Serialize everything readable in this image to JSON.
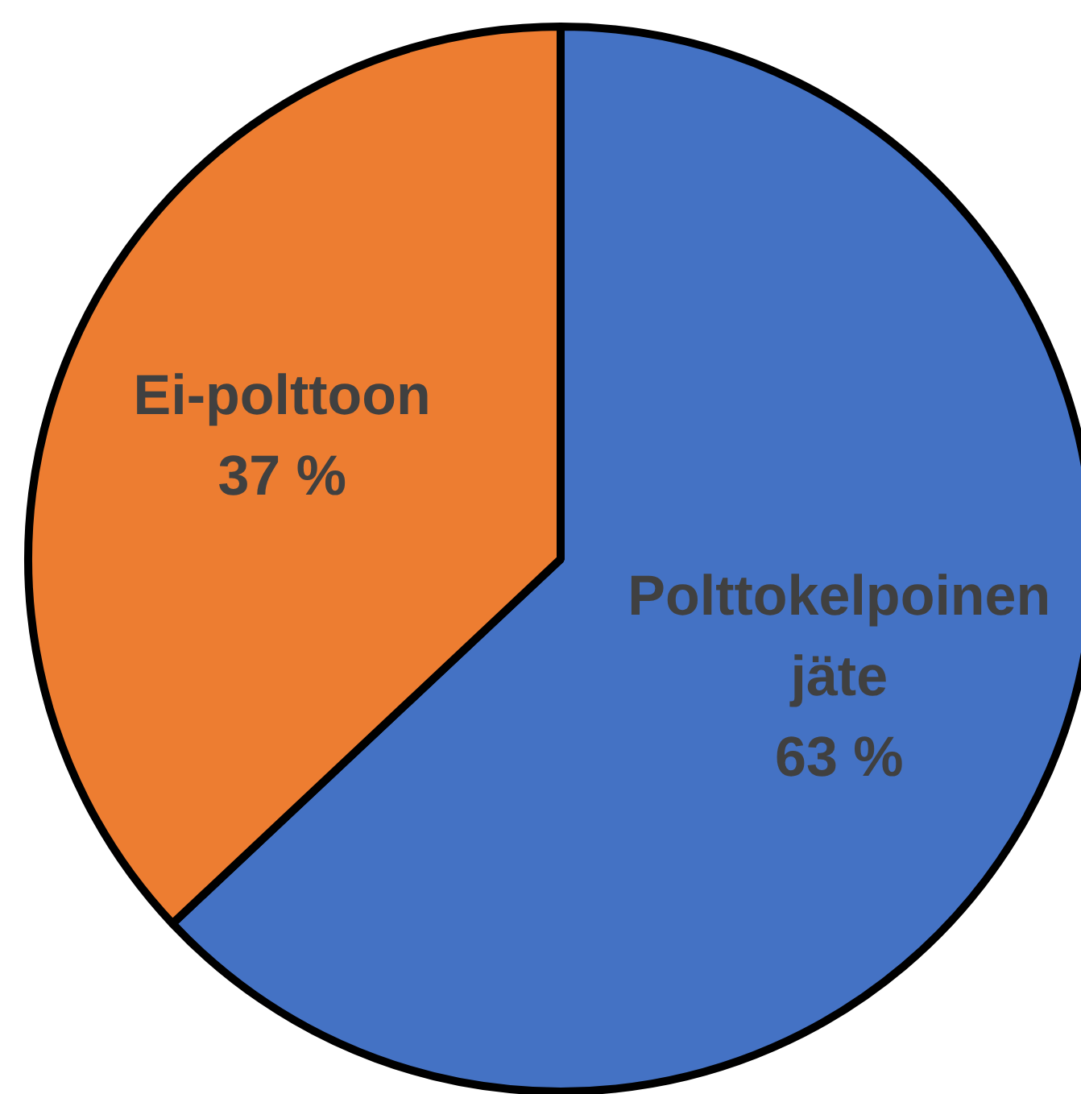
{
  "chart_data": {
    "type": "pie",
    "categories": [
      "Polttokelpoinen jäte",
      "Ei-polttoon"
    ],
    "values": [
      63,
      37
    ],
    "colors": [
      "#4472c4",
      "#ed7d31"
    ],
    "value_labels": [
      "63 %",
      "37 %"
    ],
    "legend": false
  }
}
